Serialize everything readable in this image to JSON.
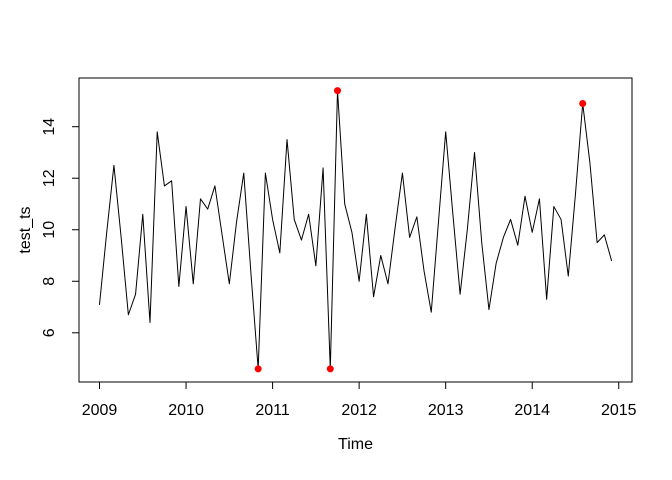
{
  "figure": {
    "background": "#FFFFFF",
    "title": ""
  },
  "chart_data": {
    "type": "line",
    "title": "",
    "xlabel": "Time",
    "ylabel": "test_ts",
    "grid": false,
    "legend": null,
    "line_color": "#000000",
    "outlier_color": "#FF0000",
    "axis_color": "#000000",
    "xlim": [
      2008.763,
      2015.153
    ],
    "ylim": [
      4.09,
      15.89
    ],
    "x_tick_values": [
      2009,
      2010,
      2011,
      2012,
      2013,
      2014,
      2015
    ],
    "x_tick_labels": [
      "2009",
      "2010",
      "2011",
      "2012",
      "2013",
      "2014",
      "2015"
    ],
    "y_tick_values": [
      6,
      8,
      10,
      12,
      14
    ],
    "y_tick_labels": [
      "6",
      "8",
      "10",
      "12",
      "14"
    ],
    "series_start_year": 2009,
    "frequency": 12,
    "values": [
      7.1,
      9.9,
      12.5,
      9.7,
      6.7,
      7.5,
      10.6,
      6.4,
      13.8,
      11.7,
      11.9,
      7.8,
      10.9,
      7.9,
      11.2,
      10.8,
      11.7,
      9.8,
      7.9,
      10.3,
      12.2,
      8.3,
      4.6,
      12.2,
      10.4,
      9.1,
      13.5,
      10.4,
      9.6,
      10.6,
      8.6,
      12.4,
      4.6,
      15.4,
      11.0,
      9.9,
      8.0,
      10.6,
      7.4,
      9.0,
      7.9,
      10.1,
      12.2,
      9.7,
      10.5,
      8.4,
      6.8,
      10.3,
      13.8,
      10.6,
      7.5,
      10.0,
      13.0,
      9.5,
      6.9,
      8.7,
      9.7,
      10.4,
      9.4,
      11.3,
      9.9,
      11.2,
      7.3,
      10.9,
      10.4,
      8.2,
      11.4,
      14.9,
      12.6,
      9.5,
      9.8,
      8.8
    ],
    "outliers": [
      {
        "time": 2010.8333,
        "value": 4.6
      },
      {
        "time": 2011.6667,
        "value": 4.6
      },
      {
        "time": 2011.75,
        "value": 15.4
      },
      {
        "time": 2014.5833,
        "value": 14.9
      }
    ]
  }
}
